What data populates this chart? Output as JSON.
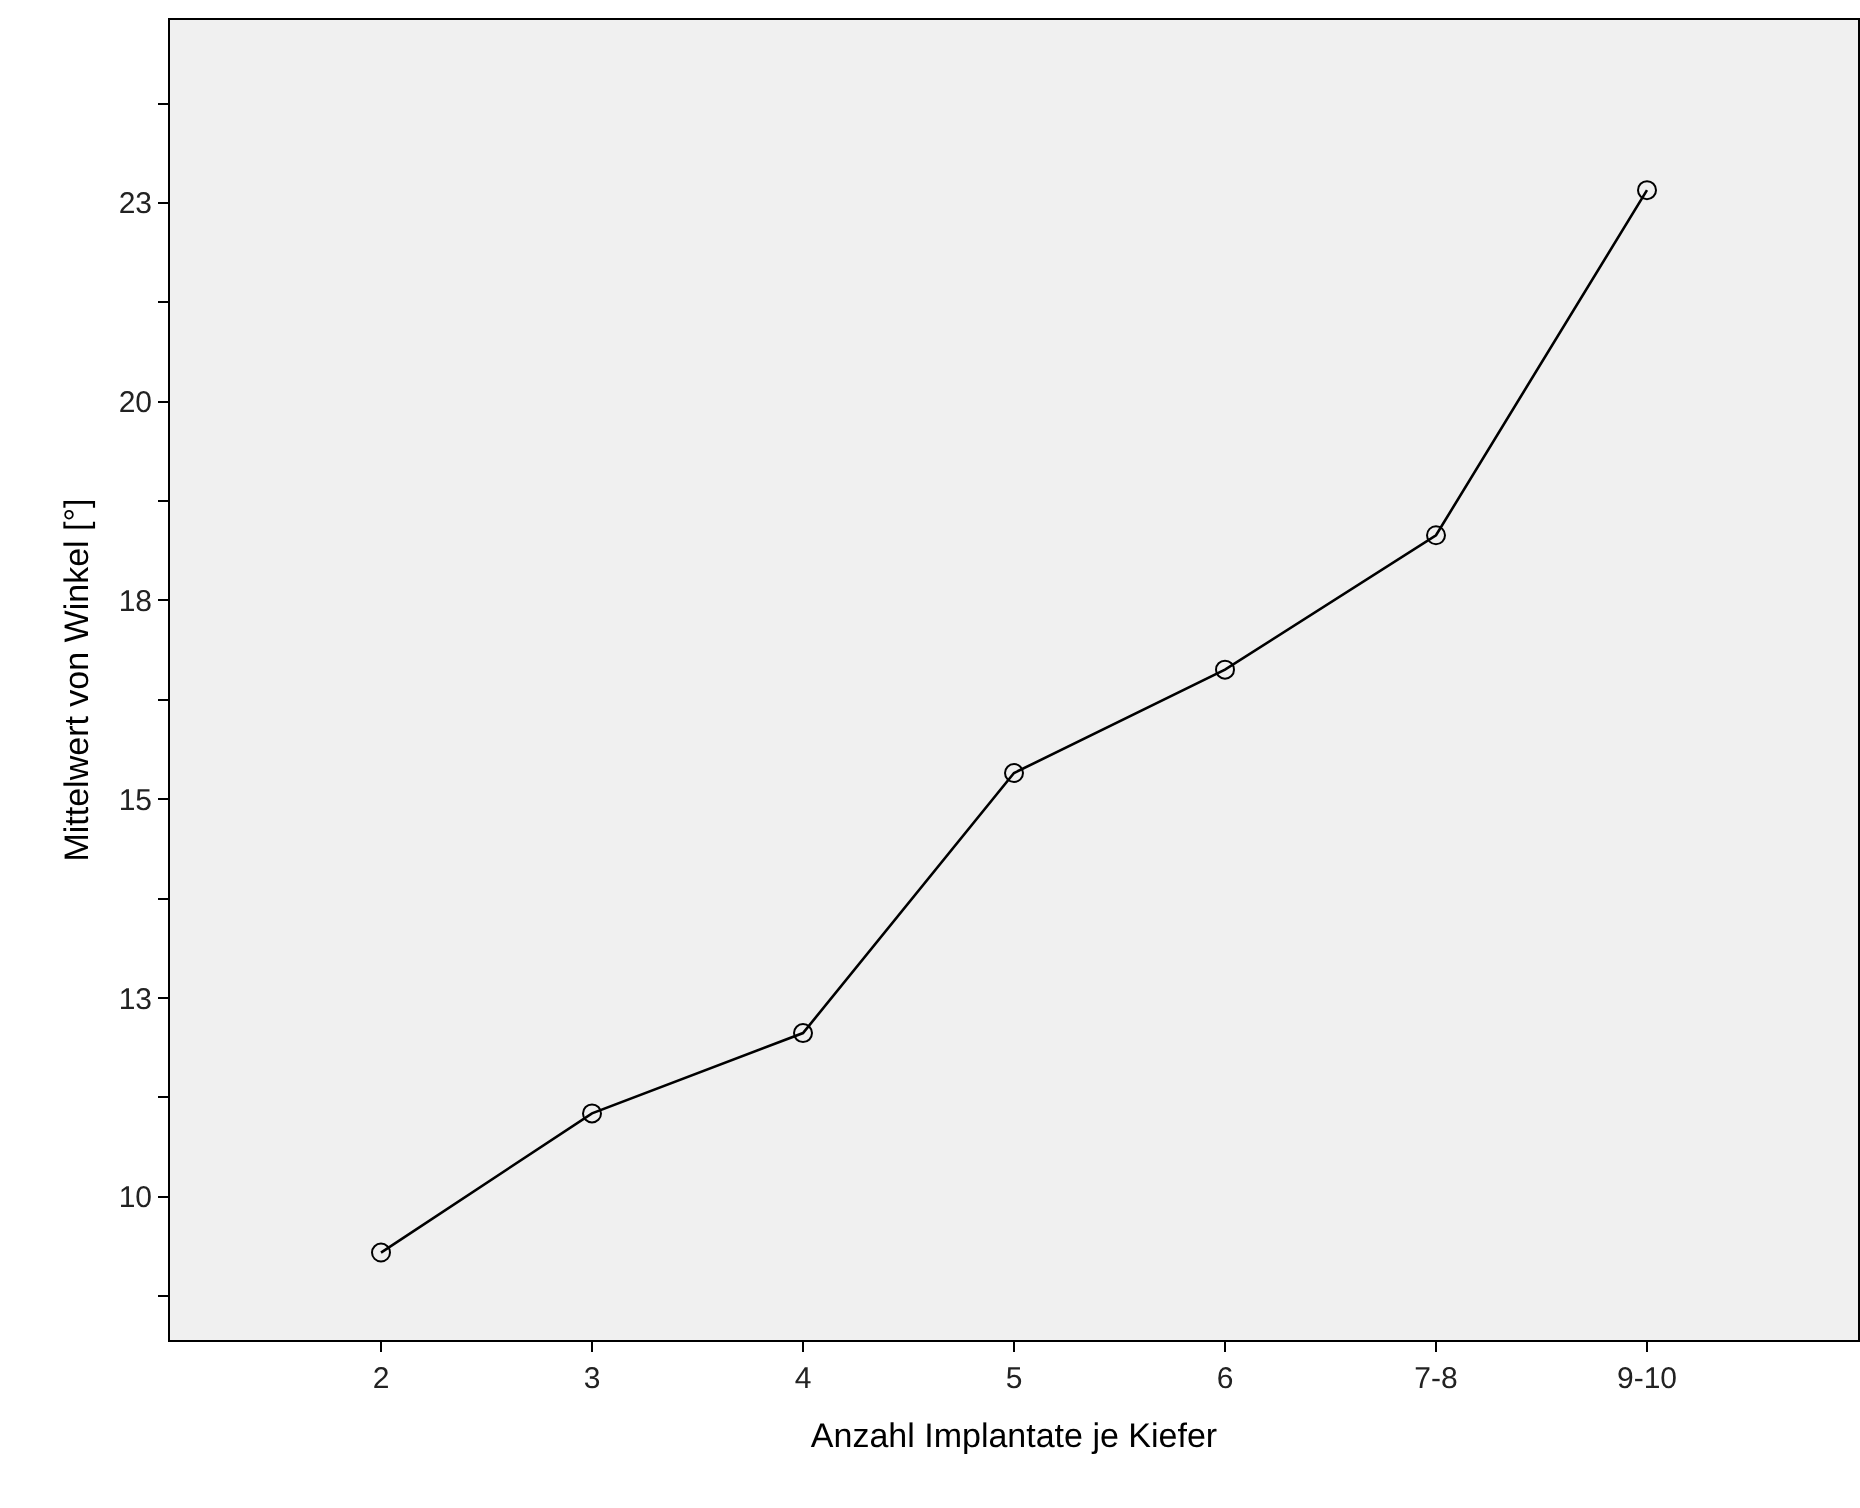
{
  "chart_data": {
    "type": "line",
    "xlabel": "Anzahl Implantate je Kiefer",
    "ylabel": "Mittelwert von Winkel [°]",
    "categories": [
      "2",
      "3",
      "4",
      "5",
      "6",
      "7-8",
      "9-10"
    ],
    "series": [
      {
        "color": "#000000",
        "values": [
          9.3,
          11.05,
          12.06,
          15.33,
          16.63,
          18.32,
          22.66
        ]
      }
    ],
    "ylim": [
      8.2,
      24.8
    ],
    "yticks": [
      {
        "value": 8.75,
        "label": null
      },
      10,
      {
        "value": 11.25,
        "label": null
      },
      {
        "value": 12.5,
        "label": "13"
      },
      {
        "value": 13.75,
        "label": null
      },
      15,
      {
        "value": 16.25,
        "label": null
      },
      {
        "value": 17.5,
        "label": "18"
      },
      {
        "value": 18.75,
        "label": null
      },
      20,
      {
        "value": 21.25,
        "label": null
      },
      {
        "value": 22.5,
        "label": "23"
      },
      {
        "value": 23.75,
        "label": null
      }
    ],
    "grid": false,
    "marker": "circle",
    "line_style": "solid"
  }
}
